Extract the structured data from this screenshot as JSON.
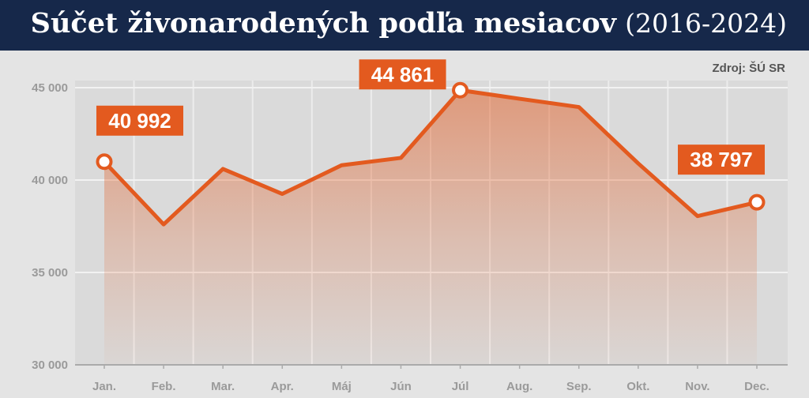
{
  "header": {
    "title_main": "Súčet živonarodených podľa mesiacov",
    "title_sub": "(2016-2024)",
    "source": "Zdroj: ŠÚ SR"
  },
  "colors": {
    "accent": "#e35a1f",
    "header_bg": "#16284a",
    "background": "#e4e4e4",
    "plot_bg": "#dadada"
  },
  "chart_data": {
    "type": "area",
    "title": "Súčet živonarodených podľa mesiacov (2016-2024)",
    "source": "Zdroj: ŠÚ SR",
    "categories": [
      "Jan.",
      "Feb.",
      "Mar.",
      "Apr.",
      "Máj",
      "Jún",
      "Júl",
      "Aug.",
      "Sep.",
      "Okt.",
      "Nov.",
      "Dec."
    ],
    "values": [
      40992,
      37600,
      40600,
      39250,
      40800,
      41200,
      44861,
      44400,
      43950,
      40900,
      38050,
      38797
    ],
    "ylim": [
      30000,
      45000
    ],
    "yticks": [
      30000,
      35000,
      40000,
      45000
    ],
    "ytick_labels": [
      "30 000",
      "35 000",
      "40 000",
      "45 000"
    ],
    "grid": true,
    "callouts": [
      {
        "index": 0,
        "label": "40 992"
      },
      {
        "index": 6,
        "label": "44 861"
      },
      {
        "index": 11,
        "label": "38 797"
      }
    ]
  }
}
